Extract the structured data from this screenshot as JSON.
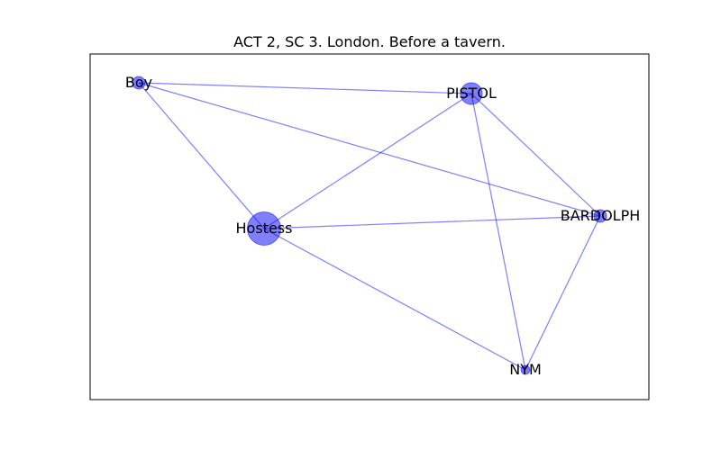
{
  "title": "ACT 2, SC 3. London. Before a tavern.",
  "colors": {
    "node": "#0000ff",
    "edge": "#0000ff",
    "frame": "#000000",
    "background": "#ffffff"
  },
  "graph": {
    "nodes": [
      {
        "id": "Boy",
        "label": "Boy",
        "weight": 1
      },
      {
        "id": "PISTOL",
        "label": "PISTOL",
        "weight": 3
      },
      {
        "id": "BARDOLPH",
        "label": "BARDOLPH",
        "weight": 1
      },
      {
        "id": "Hostess",
        "label": "Hostess",
        "weight": 7
      },
      {
        "id": "NYM",
        "label": "NYM",
        "weight": 0.5
      }
    ],
    "edges": [
      {
        "source": "Boy",
        "target": "PISTOL"
      },
      {
        "source": "Boy",
        "target": "Hostess"
      },
      {
        "source": "Boy",
        "target": "BARDOLPH"
      },
      {
        "source": "PISTOL",
        "target": "Hostess"
      },
      {
        "source": "PISTOL",
        "target": "BARDOLPH"
      },
      {
        "source": "PISTOL",
        "target": "NYM"
      },
      {
        "source": "Hostess",
        "target": "BARDOLPH"
      },
      {
        "source": "Hostess",
        "target": "NYM"
      },
      {
        "source": "BARDOLPH",
        "target": "NYM"
      }
    ]
  }
}
